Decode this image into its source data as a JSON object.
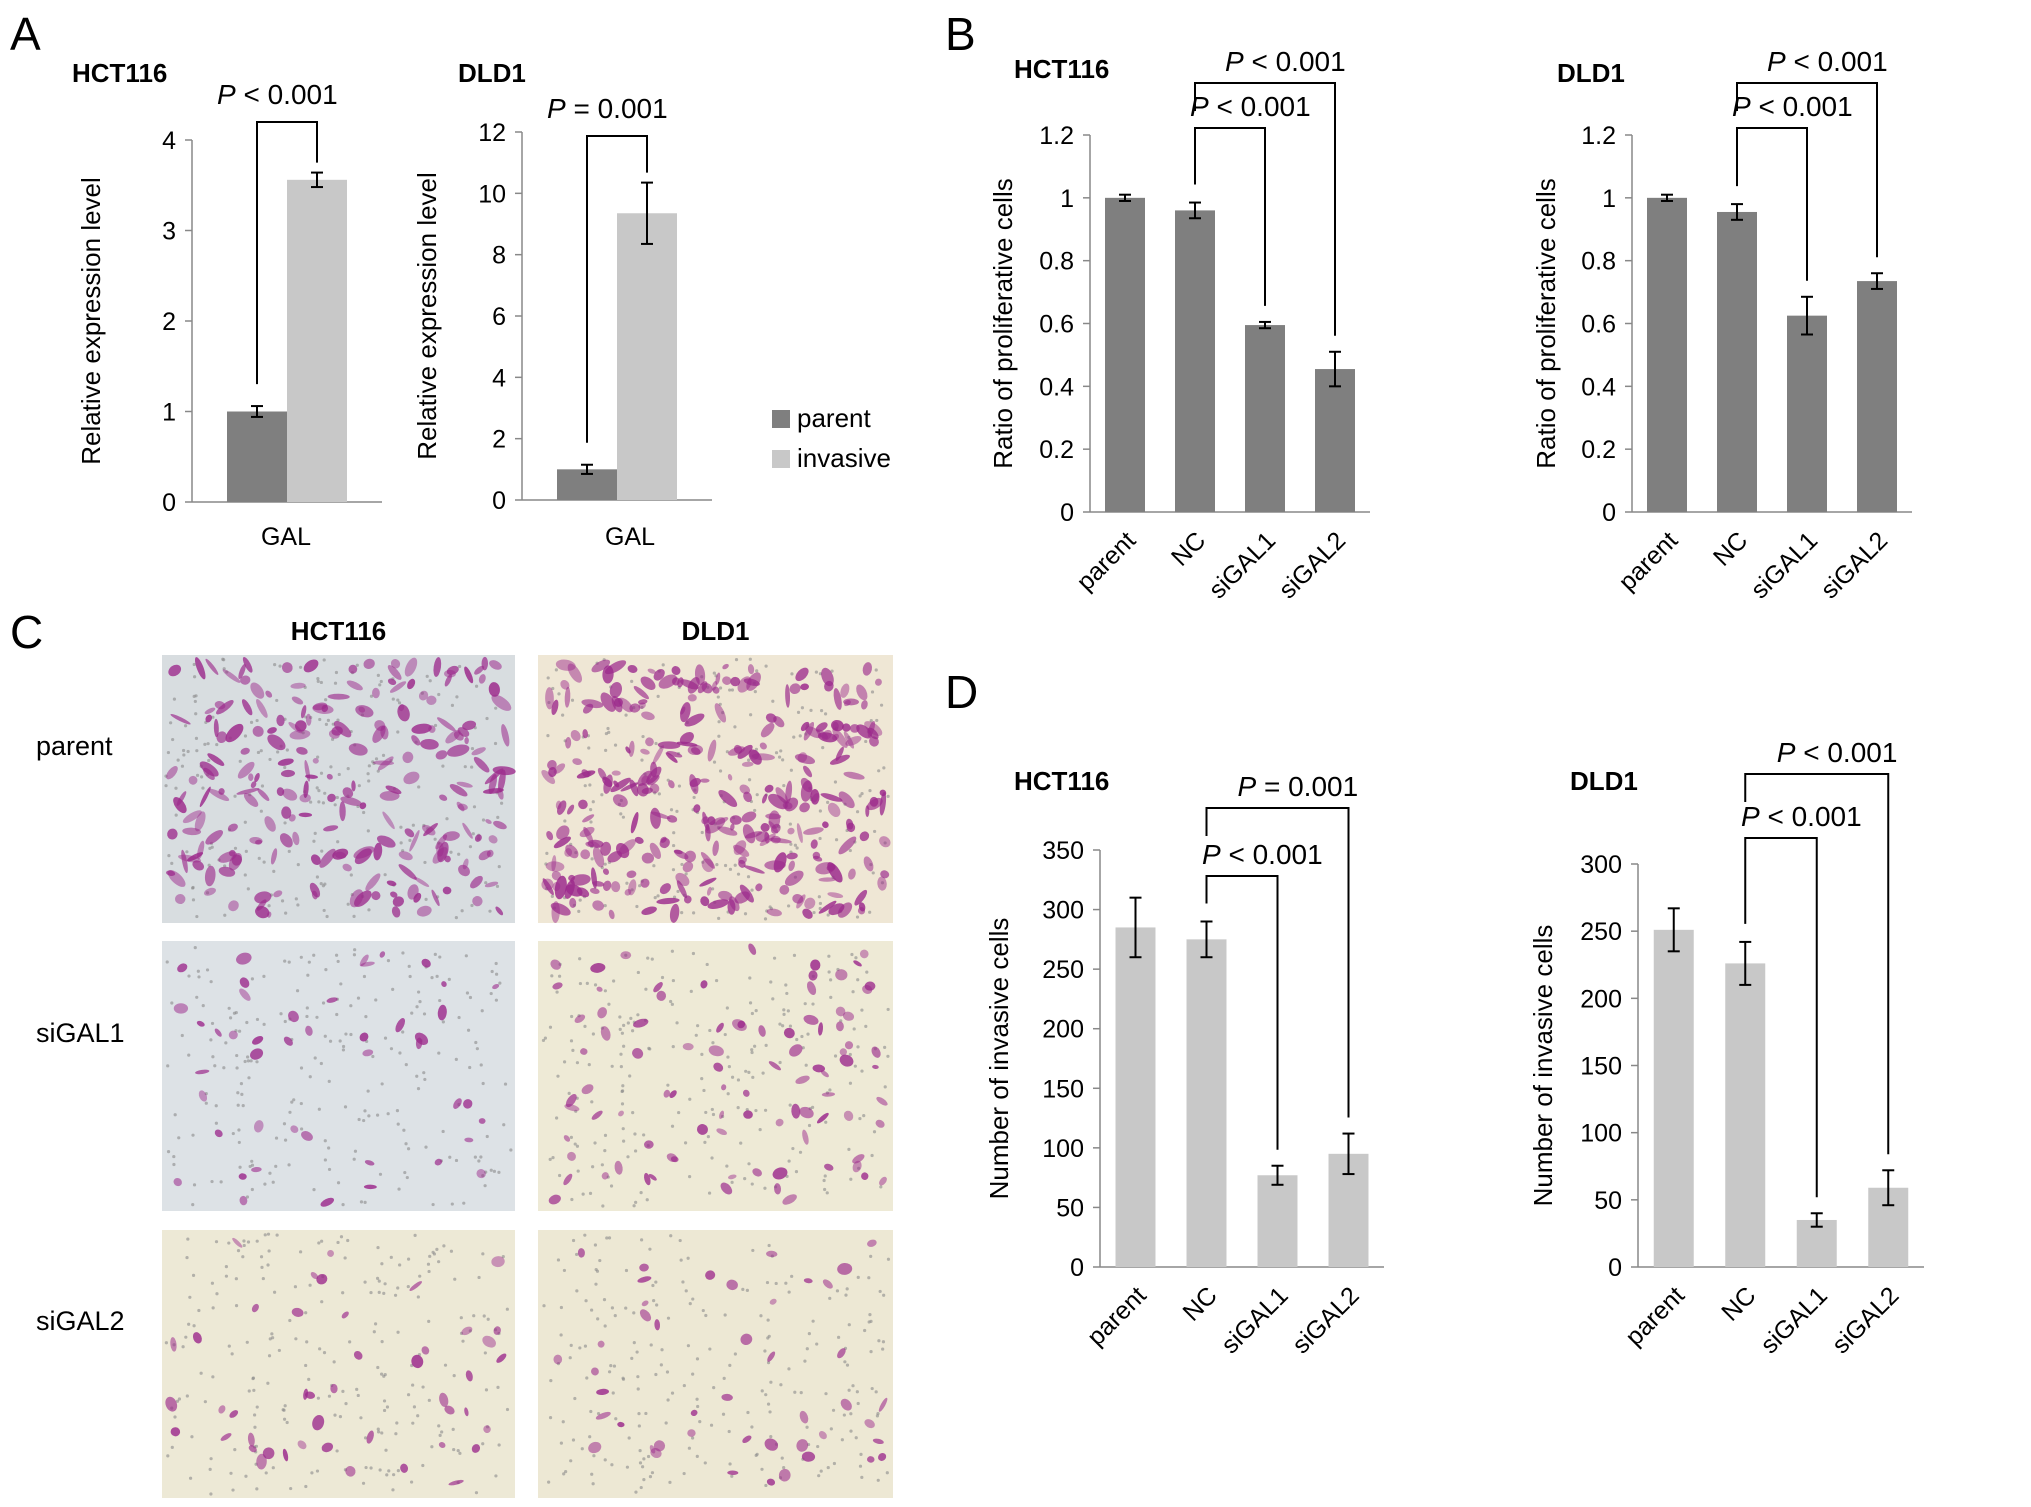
{
  "panel_labels": {
    "A": "A",
    "B": "B",
    "C": "C",
    "D": "D"
  },
  "colors": {
    "parent": "#7f7f7f",
    "invasive": "#c8c8c8",
    "bar_B": "#7f7f7f",
    "bar_D": "#c8c8c8"
  },
  "legend": {
    "parent": "parent",
    "invasive": "invasive"
  },
  "micrographs": {
    "col_headers": [
      "HCT116",
      "DLD1"
    ],
    "row_labels": [
      "parent",
      "siGAL1",
      "siGAL2"
    ],
    "backgrounds": [
      [
        "#d8dde0",
        "#efe7d5"
      ],
      [
        "#dde2e6",
        "#eeead6"
      ],
      [
        "#ede9d6",
        "#ede8d4"
      ]
    ],
    "cell_color": "#9c2a8c",
    "cell_density": [
      [
        5,
        7
      ],
      [
        1,
        2
      ],
      [
        1,
        1
      ]
    ]
  },
  "chart_data": [
    {
      "panel": "A",
      "type": "bar",
      "title": "HCT116",
      "xlabel": "",
      "ylabel": "Relative expression level",
      "categories": [
        "GAL"
      ],
      "ylim": [
        0,
        4
      ],
      "yticks": [
        "0",
        "1",
        "2",
        "3",
        "4"
      ],
      "series": [
        {
          "name": "parent",
          "values": [
            1.0
          ],
          "errors": [
            0.06
          ]
        },
        {
          "name": "invasive",
          "values": [
            3.56
          ],
          "errors": [
            0.08
          ]
        }
      ],
      "annotations": [
        {
          "pre": "P",
          "rest": " < 0.001"
        }
      ]
    },
    {
      "panel": "A",
      "type": "bar",
      "title": "DLD1",
      "xlabel": "",
      "ylabel": "Relative expression level",
      "categories": [
        "GAL"
      ],
      "ylim": [
        0,
        12
      ],
      "yticks": [
        "0",
        "2",
        "4",
        "6",
        "8",
        "10",
        "12"
      ],
      "series": [
        {
          "name": "parent",
          "values": [
            1.0
          ],
          "errors": [
            0.15
          ]
        },
        {
          "name": "invasive",
          "values": [
            9.35
          ],
          "errors": [
            1.0
          ]
        }
      ],
      "annotations": [
        {
          "pre": "P",
          "rest": " = 0.001"
        }
      ]
    },
    {
      "panel": "B",
      "type": "bar",
      "title": "HCT116",
      "xlabel": "",
      "ylabel": "Ratio of proliferative cells",
      "categories": [
        "parent",
        "NC",
        "siGAL1",
        "siGAL2"
      ],
      "ylim": [
        0,
        1.2
      ],
      "yticks": [
        "0",
        "0.2",
        "0.4",
        "0.6",
        "0.8",
        "1",
        "1.2"
      ],
      "series": [
        {
          "values": [
            1.0,
            0.96,
            0.595,
            0.455
          ],
          "errors": [
            0.01,
            0.025,
            0.01,
            0.055
          ]
        }
      ],
      "annotations": [
        {
          "pre": "P",
          "rest": " < 0.001"
        },
        {
          "pre": "P",
          "rest": " < 0.001"
        }
      ]
    },
    {
      "panel": "B",
      "type": "bar",
      "title": "DLD1",
      "xlabel": "",
      "ylabel": "Ratio of proliferative cells",
      "categories": [
        "parent",
        "NC",
        "siGAL1",
        "siGAL2"
      ],
      "ylim": [
        0,
        1.2
      ],
      "yticks": [
        "0",
        "0.2",
        "0.4",
        "0.6",
        "0.8",
        "1",
        "1.2"
      ],
      "series": [
        {
          "values": [
            1.0,
            0.955,
            0.625,
            0.735
          ],
          "errors": [
            0.01,
            0.025,
            0.06,
            0.025
          ]
        }
      ],
      "annotations": [
        {
          "pre": "P",
          "rest": " < 0.001"
        },
        {
          "pre": "P",
          "rest": " < 0.001"
        }
      ]
    },
    {
      "panel": "D",
      "type": "bar",
      "title": "HCT116",
      "xlabel": "",
      "ylabel": "Number of invasive cells",
      "categories": [
        "parent",
        "NC",
        "siGAL1",
        "siGAL2"
      ],
      "ylim": [
        0,
        350
      ],
      "yticks": [
        "0",
        "50",
        "100",
        "150",
        "200",
        "250",
        "300",
        "350"
      ],
      "series": [
        {
          "values": [
            285,
            275,
            77,
            95
          ],
          "errors": [
            25,
            15,
            8,
            17
          ]
        }
      ],
      "annotations": [
        {
          "pre": "P",
          "rest": " < 0.001"
        },
        {
          "pre": "P",
          "rest": " = 0.001"
        }
      ]
    },
    {
      "panel": "D",
      "type": "bar",
      "title": "DLD1",
      "xlabel": "",
      "ylabel": "Number of invasive cells",
      "categories": [
        "parent",
        "NC",
        "siGAL1",
        "siGAL2"
      ],
      "ylim": [
        0,
        300
      ],
      "yticks": [
        "0",
        "50",
        "100",
        "150",
        "200",
        "250",
        "300"
      ],
      "series": [
        {
          "values": [
            251,
            226,
            35,
            59
          ],
          "errors": [
            16,
            16,
            5,
            13
          ]
        }
      ],
      "annotations": [
        {
          "pre": "P",
          "rest": " < 0.001"
        },
        {
          "pre": "P",
          "rest": " < 0.001"
        }
      ]
    }
  ]
}
